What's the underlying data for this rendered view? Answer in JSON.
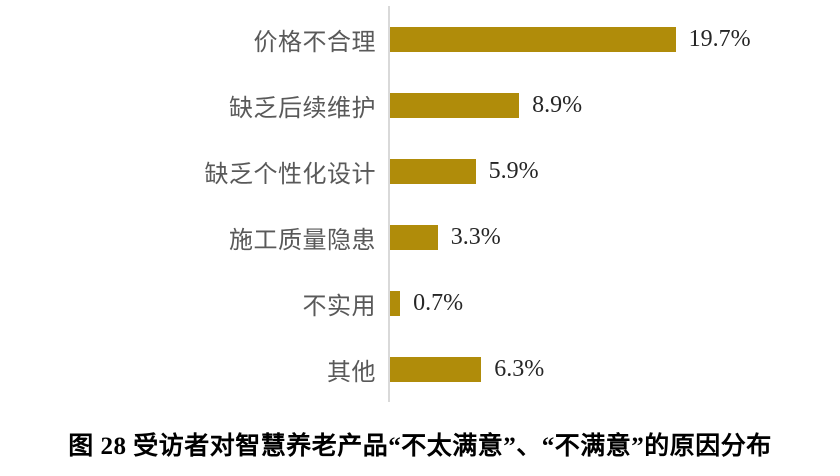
{
  "figure": {
    "caption": "图 28 受访者对智慧养老产品“不太满意”、“不满意”的原因分布"
  },
  "chart_data": {
    "type": "bar",
    "orientation": "horizontal",
    "title": "图 28 受访者对智慧养老产品“不太满意”、“不满意”的原因分布",
    "categories": [
      "价格不合理",
      "缺乏后续维护",
      "缺乏个性化设计",
      "施工质量隐患",
      "不实用",
      "其他"
    ],
    "values": [
      19.7,
      8.9,
      5.9,
      3.3,
      0.7,
      6.3
    ],
    "value_labels": [
      "19.7%",
      "8.9%",
      "5.9%",
      "3.3%",
      "0.7%",
      "6.3%"
    ],
    "xlabel": "",
    "ylabel": "",
    "xlim": [
      0,
      21
    ],
    "grid": false,
    "legend": null,
    "data_labels": "outside-end",
    "bar_color": "#b08c0a",
    "axis_line_color": "#d9d9d9",
    "category_label_color": "#595959",
    "value_label_color": "#262626"
  }
}
